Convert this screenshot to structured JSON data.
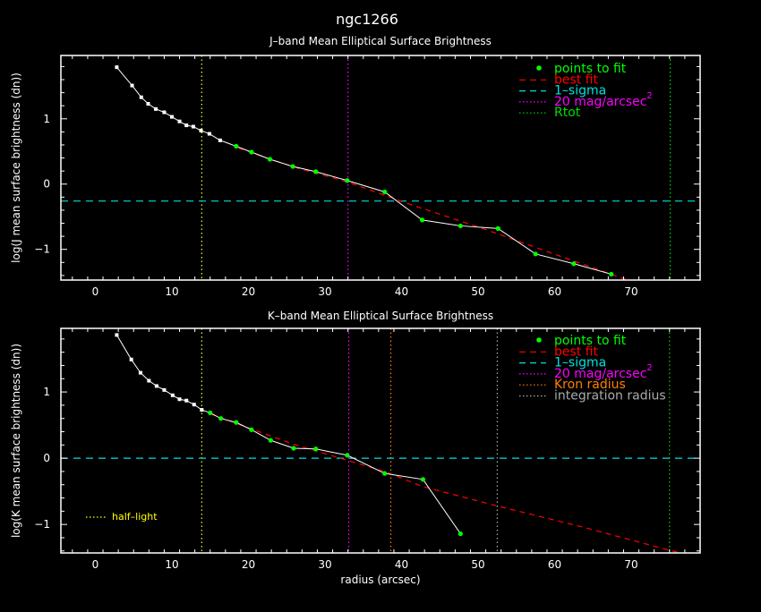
{
  "title": "ngc1266",
  "xlabel": "radius (arcsec)",
  "colors": {
    "profile": "#ffffff",
    "fit_points": "#00ff00",
    "best_fit": "#ff0000",
    "sigma": "#00e0e0",
    "mag20": "#ff00ff",
    "rtot": "#00dd00",
    "kron": "#ff8000",
    "integration": "#aaaaaa",
    "half_light": "#ffff00",
    "axes": "#ffffff"
  },
  "chart_data": [
    {
      "type": "line",
      "title": "J–band Mean Elliptical Surface Brightness",
      "ylabel": "log(J mean surface brightness (dn))",
      "xlim": [
        -4.5,
        79
      ],
      "ylim": [
        -1.47,
        1.97
      ],
      "xticks": [
        0,
        10,
        20,
        30,
        40,
        50,
        60,
        70
      ],
      "yticks": [
        -1,
        0,
        1
      ],
      "profile_points": [
        [
          2.8,
          1.79
        ],
        [
          4.8,
          1.51
        ],
        [
          6.0,
          1.33
        ],
        [
          6.9,
          1.23
        ],
        [
          7.9,
          1.15
        ],
        [
          9.0,
          1.1
        ],
        [
          10.0,
          1.03
        ],
        [
          11.0,
          0.96
        ],
        [
          11.9,
          0.9
        ],
        [
          12.8,
          0.88
        ],
        [
          13.8,
          0.82
        ],
        [
          14.9,
          0.77
        ],
        [
          16.3,
          0.67
        ]
      ],
      "fit_points": [
        [
          18.4,
          0.58
        ],
        [
          20.4,
          0.49
        ],
        [
          22.8,
          0.38
        ],
        [
          25.8,
          0.27
        ],
        [
          28.8,
          0.19
        ],
        [
          32.9,
          0.055
        ],
        [
          37.8,
          -0.12
        ],
        [
          42.7,
          -0.55
        ],
        [
          47.7,
          -0.64
        ],
        [
          52.6,
          -0.68
        ],
        [
          57.5,
          -1.07
        ],
        [
          62.5,
          -1.22
        ],
        [
          67.4,
          -1.38
        ]
      ],
      "best_fit": [
        [
          18.7,
          0.55
        ],
        [
          25.7,
          0.27
        ],
        [
          33.0,
          0.03
        ],
        [
          41.1,
          -0.31
        ],
        [
          50.6,
          -0.68
        ],
        [
          59.2,
          -1.04
        ],
        [
          69.5,
          -1.47
        ]
      ],
      "one_sigma": -0.26,
      "vlines": [
        {
          "key": "half_light",
          "x": 13.9
        },
        {
          "key": "mag20",
          "x": 33.0
        },
        {
          "key": "rtot",
          "x": 75.1
        }
      ],
      "legend": [
        {
          "key": "fit_points",
          "style": "dot",
          "label": "points to fit"
        },
        {
          "key": "best_fit",
          "style": "dash",
          "label": "best fit"
        },
        {
          "key": "sigma",
          "style": "dash",
          "label": "1–sigma"
        },
        {
          "key": "mag20",
          "style": "dot-line",
          "label": "20 mag/arcsec",
          "sup": "2"
        },
        {
          "key": "rtot",
          "style": "dot-line",
          "label": "Rtot"
        }
      ]
    },
    {
      "type": "line",
      "title": "K–band Mean Elliptical Surface Brightness",
      "ylabel": "log(K mean surface brightness (dn))",
      "xlim": [
        -4.5,
        79
      ],
      "ylim": [
        -1.43,
        1.96
      ],
      "xticks": [
        0,
        10,
        20,
        30,
        40,
        50,
        60,
        70
      ],
      "yticks": [
        -1,
        0,
        1
      ],
      "profile_points": [
        [
          2.8,
          1.86
        ],
        [
          4.7,
          1.49
        ],
        [
          5.9,
          1.29
        ],
        [
          7.0,
          1.17
        ],
        [
          8.0,
          1.09
        ],
        [
          9.0,
          1.03
        ],
        [
          10.1,
          0.95
        ],
        [
          11.0,
          0.89
        ],
        [
          11.9,
          0.87
        ],
        [
          12.9,
          0.81
        ],
        [
          13.9,
          0.73
        ]
      ],
      "fit_points": [
        [
          15.0,
          0.685
        ],
        [
          16.4,
          0.6
        ],
        [
          18.4,
          0.54
        ],
        [
          20.4,
          0.43
        ],
        [
          22.9,
          0.27
        ],
        [
          25.9,
          0.15
        ],
        [
          28.8,
          0.14
        ],
        [
          32.9,
          0.045
        ],
        [
          37.8,
          -0.23
        ],
        [
          42.8,
          -0.32
        ],
        [
          47.7,
          -1.14
        ]
      ],
      "best_fit": [
        [
          15.0,
          0.67
        ],
        [
          25.9,
          0.21
        ],
        [
          37.8,
          -0.2
        ],
        [
          42.8,
          -0.43
        ],
        [
          52.5,
          -0.72
        ],
        [
          63.7,
          -1.04
        ],
        [
          75.0,
          -1.39
        ],
        [
          76.5,
          -1.43
        ]
      ],
      "one_sigma": 0.0,
      "vlines": [
        {
          "key": "half_light",
          "x": 13.9
        },
        {
          "key": "mag20",
          "x": 33.1
        },
        {
          "key": "kron",
          "x": 38.6
        },
        {
          "key": "integration",
          "x": 52.5
        },
        {
          "key": "rtot",
          "x": 75.0
        }
      ],
      "legend": [
        {
          "key": "fit_points",
          "style": "dot",
          "label": "points to fit"
        },
        {
          "key": "best_fit",
          "style": "dash",
          "label": "best fit"
        },
        {
          "key": "sigma",
          "style": "dash",
          "label": "1–sigma"
        },
        {
          "key": "mag20",
          "style": "dot-line",
          "label": "20 mag/arcsec",
          "sup": "2"
        },
        {
          "key": "kron",
          "style": "dot-line",
          "label": "Kron radius"
        },
        {
          "key": "integration",
          "style": "dot-line",
          "label": "integration radius"
        }
      ],
      "extra_legend": {
        "key": "half_light",
        "label": "half–light"
      }
    }
  ]
}
